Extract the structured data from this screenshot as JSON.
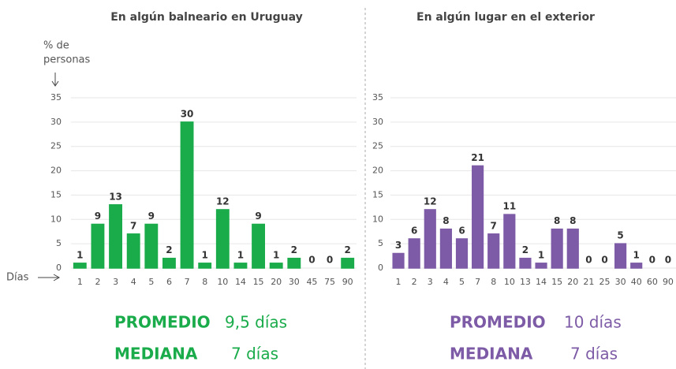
{
  "chart_data": [
    {
      "type": "bar",
      "title": "En algún balneario en Uruguay",
      "y_label": [
        "% de",
        "personas"
      ],
      "x_label": "Días",
      "categories": [
        "1",
        "2",
        "3",
        "4",
        "5",
        "6",
        "7",
        "8",
        "10",
        "14",
        "15",
        "20",
        "30",
        "45",
        "75",
        "90"
      ],
      "values": [
        1,
        9,
        13,
        7,
        9,
        2,
        30,
        1,
        12,
        1,
        9,
        1,
        2,
        0,
        0,
        2
      ],
      "color": "#1aab4b",
      "ylim": [
        0,
        35
      ],
      "yticks": [
        0,
        5,
        10,
        15,
        20,
        25,
        30,
        35
      ],
      "grid": true,
      "stats": [
        {
          "label": "PROMEDIO",
          "value": "9,5 días"
        },
        {
          "label": "MEDIANA",
          "value": "7 días"
        }
      ]
    },
    {
      "type": "bar",
      "title": "En algún lugar en el exterior",
      "categories": [
        "1",
        "2",
        "3",
        "4",
        "5",
        "7",
        "8",
        "10",
        "13",
        "14",
        "15",
        "20",
        "21",
        "25",
        "30",
        "40",
        "60",
        "90"
      ],
      "values": [
        3,
        6,
        12,
        8,
        6,
        21,
        7,
        11,
        2,
        1,
        8,
        8,
        0,
        0,
        5,
        1,
        0,
        0
      ],
      "color": "#7d5ba6",
      "ylim": [
        0,
        35
      ],
      "yticks": [
        0,
        5,
        10,
        15,
        20,
        25,
        30,
        35
      ],
      "grid": true,
      "stats": [
        {
          "label": "PROMEDIO",
          "value": "10 días"
        },
        {
          "label": "MEDIANA",
          "value": "7 días"
        }
      ]
    }
  ]
}
